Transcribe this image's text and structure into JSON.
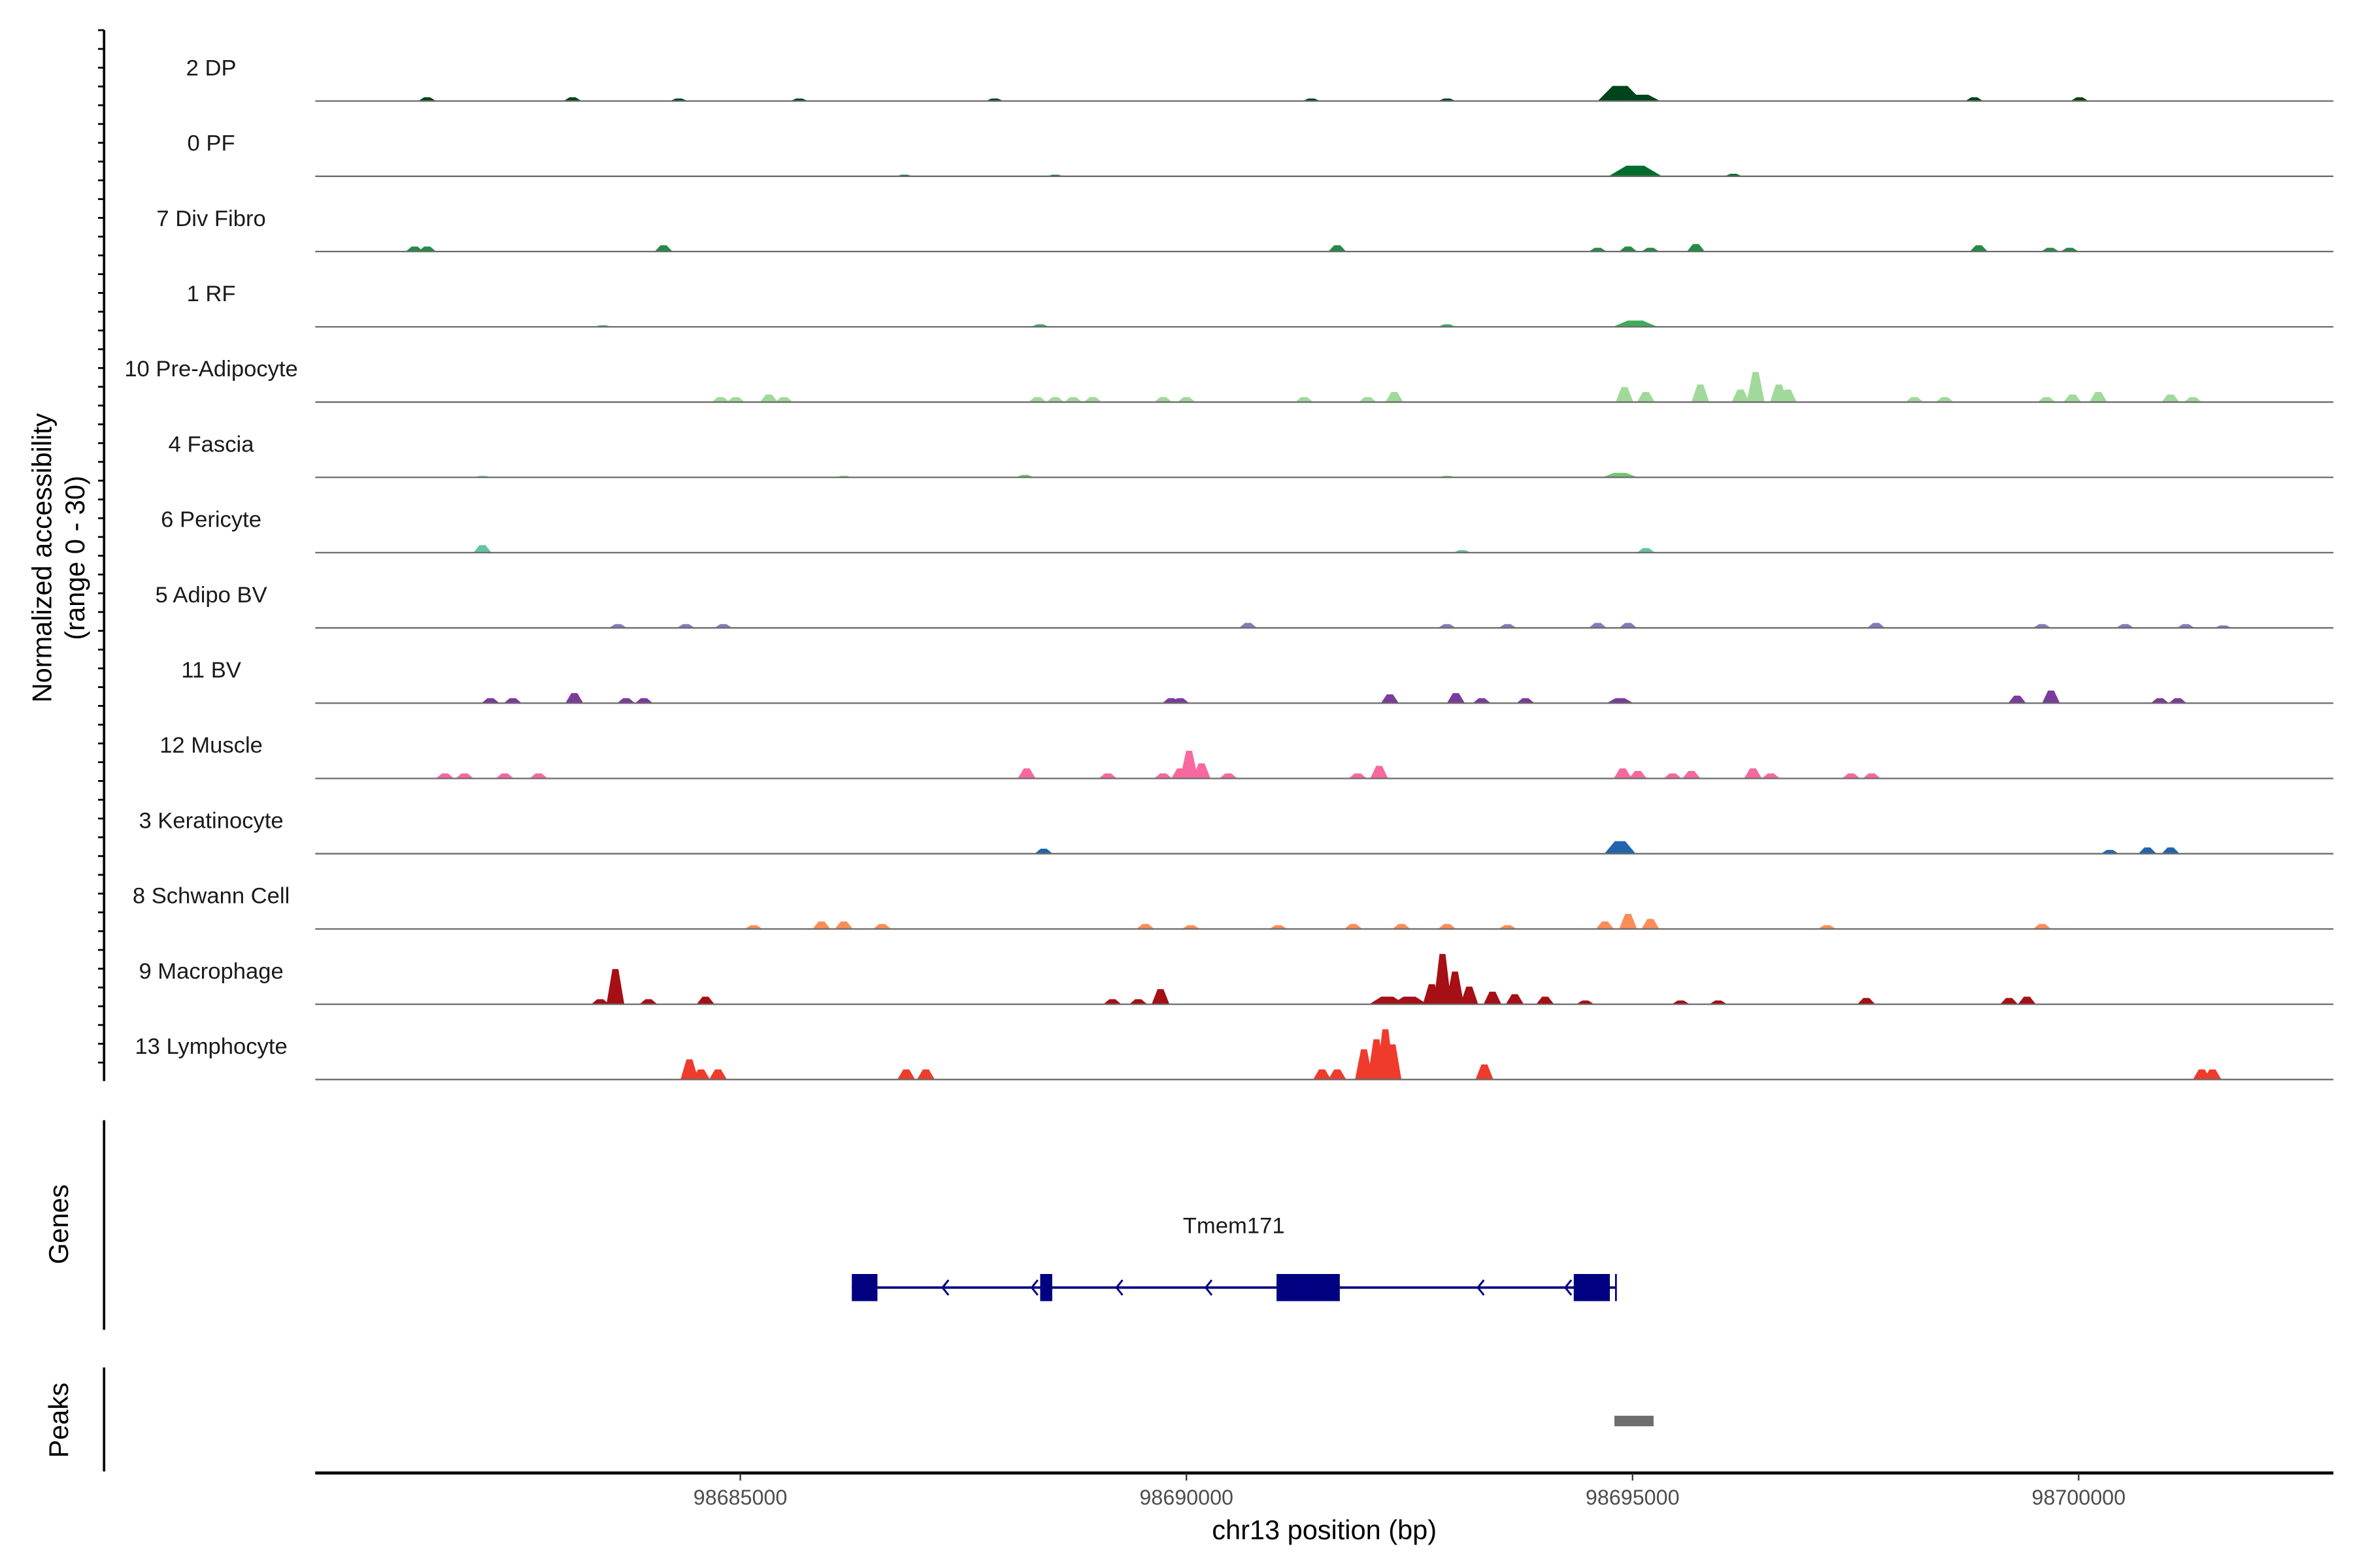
{
  "chart_data": {
    "type": "area",
    "title": "",
    "xlabel": "chr13 position (bp)",
    "ylabel": "Normalized accessibility",
    "ylabel_sub": "(range 0 - 30)",
    "ylim": [
      0,
      30
    ],
    "xlim": [
      98680236,
      98702855
    ],
    "x_ticks": [
      98685000,
      98690000,
      98695000,
      98700000
    ],
    "x_tick_labels": [
      "98685000",
      "98690000",
      "98695000",
      "98700000"
    ],
    "grid": false,
    "default_peak_width_bp": 200,
    "tracks": [
      {
        "name": "2 DP",
        "color": "#00441b",
        "peaks": [
          [
            98681490,
            1.5
          ],
          [
            98683120,
            1.5
          ],
          [
            98684310,
            1
          ],
          [
            98685660,
            1
          ],
          [
            98687850,
            1
          ],
          [
            98691400,
            1
          ],
          [
            98692920,
            1
          ],
          [
            98694860,
            6,
            500
          ],
          [
            98695110,
            2.5,
            400
          ],
          [
            98698830,
            1.5
          ],
          [
            98700010,
            1.5
          ]
        ]
      },
      {
        "name": "0 PF",
        "color": "#006d2c",
        "peaks": [
          [
            98686840,
            0.6
          ],
          [
            98688530,
            0.6
          ],
          [
            98695030,
            4.2,
            600
          ],
          [
            98696130,
            1
          ]
        ]
      },
      {
        "name": "7 Div Fibro",
        "color": "#238b45",
        "peaks": [
          [
            98681350,
            2
          ],
          [
            98681490,
            2
          ],
          [
            98684140,
            2.5
          ],
          [
            98691690,
            2.5
          ],
          [
            98694610,
            1.5
          ],
          [
            98694950,
            2
          ],
          [
            98695200,
            1.5
          ],
          [
            98695710,
            3
          ],
          [
            98698880,
            2.5
          ],
          [
            98699680,
            1.5
          ],
          [
            98699900,
            1.5
          ]
        ]
      },
      {
        "name": "1 RF",
        "color": "#41ab5d",
        "peaks": [
          [
            98683460,
            0.6
          ],
          [
            98688360,
            1
          ],
          [
            98692920,
            1
          ],
          [
            98695030,
            2.5,
            500
          ]
        ]
      },
      {
        "name": "10 Pre-Adipocyte",
        "color": "#a1d99b",
        "peaks": [
          [
            98684780,
            2
          ],
          [
            98684950,
            2
          ],
          [
            98685320,
            3
          ],
          [
            98685490,
            2
          ],
          [
            98688330,
            2
          ],
          [
            98688530,
            2
          ],
          [
            98688730,
            2
          ],
          [
            98688950,
            2
          ],
          [
            98689740,
            2
          ],
          [
            98690000,
            2
          ],
          [
            98691320,
            2
          ],
          [
            98692030,
            2
          ],
          [
            98692330,
            4
          ],
          [
            98694910,
            6
          ],
          [
            98695150,
            4
          ],
          [
            98695760,
            7
          ],
          [
            98696210,
            5
          ],
          [
            98696380,
            12
          ],
          [
            98696640,
            7
          ],
          [
            98696740,
            5
          ],
          [
            98698160,
            2
          ],
          [
            98698500,
            2
          ],
          [
            98699640,
            2
          ],
          [
            98699930,
            3
          ],
          [
            98700220,
            4
          ],
          [
            98701030,
            3
          ],
          [
            98701280,
            2
          ]
        ]
      },
      {
        "name": "4 Fascia",
        "color": "#74c476",
        "peaks": [
          [
            98682110,
            0.6
          ],
          [
            98686160,
            0.6
          ],
          [
            98688190,
            1
          ],
          [
            98692920,
            0.6
          ],
          [
            98694860,
            1.8,
            400
          ]
        ]
      },
      {
        "name": "6 Pericyte",
        "color": "#66c2a4",
        "peaks": [
          [
            98682110,
            3
          ],
          [
            98693090,
            1
          ],
          [
            98695150,
            1.8
          ]
        ]
      },
      {
        "name": "5 Adipo BV",
        "color": "#807dba",
        "peaks": [
          [
            98683630,
            1.5
          ],
          [
            98684390,
            1.5
          ],
          [
            98684810,
            1.5
          ],
          [
            98690690,
            2
          ],
          [
            98692920,
            1.5
          ],
          [
            98693600,
            1.5
          ],
          [
            98694610,
            2
          ],
          [
            98694950,
            2
          ],
          [
            98697730,
            2
          ],
          [
            98699590,
            1.5
          ],
          [
            98700520,
            1.5
          ],
          [
            98701200,
            1.5
          ],
          [
            98701620,
            1
          ]
        ]
      },
      {
        "name": "11 BV",
        "color": "#7a3b9a",
        "peaks": [
          [
            98682200,
            2
          ],
          [
            98682450,
            2
          ],
          [
            98683140,
            4
          ],
          [
            98683720,
            2
          ],
          [
            98683920,
            2
          ],
          [
            98689830,
            2
          ],
          [
            98689930,
            2
          ],
          [
            98692280,
            3.5
          ],
          [
            98693020,
            4
          ],
          [
            98693310,
            2
          ],
          [
            98693800,
            2
          ],
          [
            98694860,
            2,
            300
          ],
          [
            98699310,
            3
          ],
          [
            98699690,
            5
          ],
          [
            98700910,
            2
          ],
          [
            98701110,
            2
          ]
        ]
      },
      {
        "name": "12 Muscle",
        "color": "#f768a1",
        "peaks": [
          [
            98681690,
            2
          ],
          [
            98681910,
            2
          ],
          [
            98682360,
            2
          ],
          [
            98682740,
            2
          ],
          [
            98688210,
            4
          ],
          [
            98689120,
            2
          ],
          [
            98689740,
            2
          ],
          [
            98689930,
            4
          ],
          [
            98690030,
            11
          ],
          [
            98690170,
            6
          ],
          [
            98690470,
            2
          ],
          [
            98691920,
            2
          ],
          [
            98692160,
            5
          ],
          [
            98694890,
            4
          ],
          [
            98695060,
            3
          ],
          [
            98695450,
            2
          ],
          [
            98695660,
            3
          ],
          [
            98696350,
            4
          ],
          [
            98696550,
            2
          ],
          [
            98697450,
            2
          ],
          [
            98697680,
            2
          ]
        ]
      },
      {
        "name": "3 Keratinocyte",
        "color": "#2166ac",
        "peaks": [
          [
            98688400,
            2
          ],
          [
            98694860,
            5,
            350
          ],
          [
            98700350,
            1.5
          ],
          [
            98700770,
            2.5
          ],
          [
            98701030,
            2.5
          ]
        ]
      },
      {
        "name": "8 Schwann Cell",
        "color": "#fc8d59",
        "peaks": [
          [
            98685150,
            1.5
          ],
          [
            98685910,
            3
          ],
          [
            98686160,
            3
          ],
          [
            98686590,
            2
          ],
          [
            98689540,
            2
          ],
          [
            98690050,
            1.5
          ],
          [
            98691030,
            1.5
          ],
          [
            98691870,
            2
          ],
          [
            98692410,
            2
          ],
          [
            98692920,
            2
          ],
          [
            98693600,
            1.5
          ],
          [
            98694690,
            3
          ],
          [
            98694950,
            6
          ],
          [
            98695200,
            4
          ],
          [
            98697180,
            1.5
          ],
          [
            98699590,
            2
          ]
        ]
      },
      {
        "name": "9 Macrophage",
        "color": "#a50f15",
        "peaks": [
          [
            98683430,
            2
          ],
          [
            98683600,
            14
          ],
          [
            98683970,
            2
          ],
          [
            98684610,
            3
          ],
          [
            98689170,
            2
          ],
          [
            98689460,
            2
          ],
          [
            98689710,
            6
          ],
          [
            98692250,
            3,
            400
          ],
          [
            98692500,
            3,
            400
          ],
          [
            98692750,
            8
          ],
          [
            98692870,
            20
          ],
          [
            98693010,
            13
          ],
          [
            98693170,
            7
          ],
          [
            98693430,
            5
          ],
          [
            98693680,
            4
          ],
          [
            98694020,
            3
          ],
          [
            98694470,
            1.5
          ],
          [
            98695540,
            1.5
          ],
          [
            98695960,
            1.5
          ],
          [
            98697620,
            2.5
          ],
          [
            98699220,
            2.5
          ],
          [
            98699420,
            3
          ]
        ]
      },
      {
        "name": "13 Lymphocyte",
        "color": "#ef3b2c",
        "peaks": [
          [
            98684430,
            8
          ],
          [
            98684560,
            4
          ],
          [
            98684750,
            4
          ],
          [
            98686860,
            4
          ],
          [
            98687080,
            4
          ],
          [
            98691520,
            4
          ],
          [
            98691690,
            4
          ],
          [
            98691990,
            12
          ],
          [
            98692130,
            16
          ],
          [
            98692230,
            20
          ],
          [
            98692310,
            14
          ],
          [
            98693340,
            6
          ],
          [
            98701380,
            4
          ],
          [
            98701500,
            4
          ]
        ]
      }
    ],
    "genes_panel": {
      "label": "Genes",
      "gene_name": "Tmem171",
      "color": "#000080",
      "strand": "-",
      "start": 98686250,
      "end": 98694814,
      "exons": [
        [
          98686250,
          98686537
        ],
        [
          98688361,
          98688496
        ],
        [
          98691010,
          98691719
        ],
        [
          98694341,
          98694746
        ]
      ],
      "arrow_positions": [
        98687300,
        98688300,
        98689250,
        98690250,
        98691250,
        98693300,
        98694280
      ]
    },
    "peaks_panel": {
      "label": "Peaks",
      "color": "#6e6e6e",
      "regions": [
        [
          98694797,
          98695236
        ]
      ]
    }
  }
}
